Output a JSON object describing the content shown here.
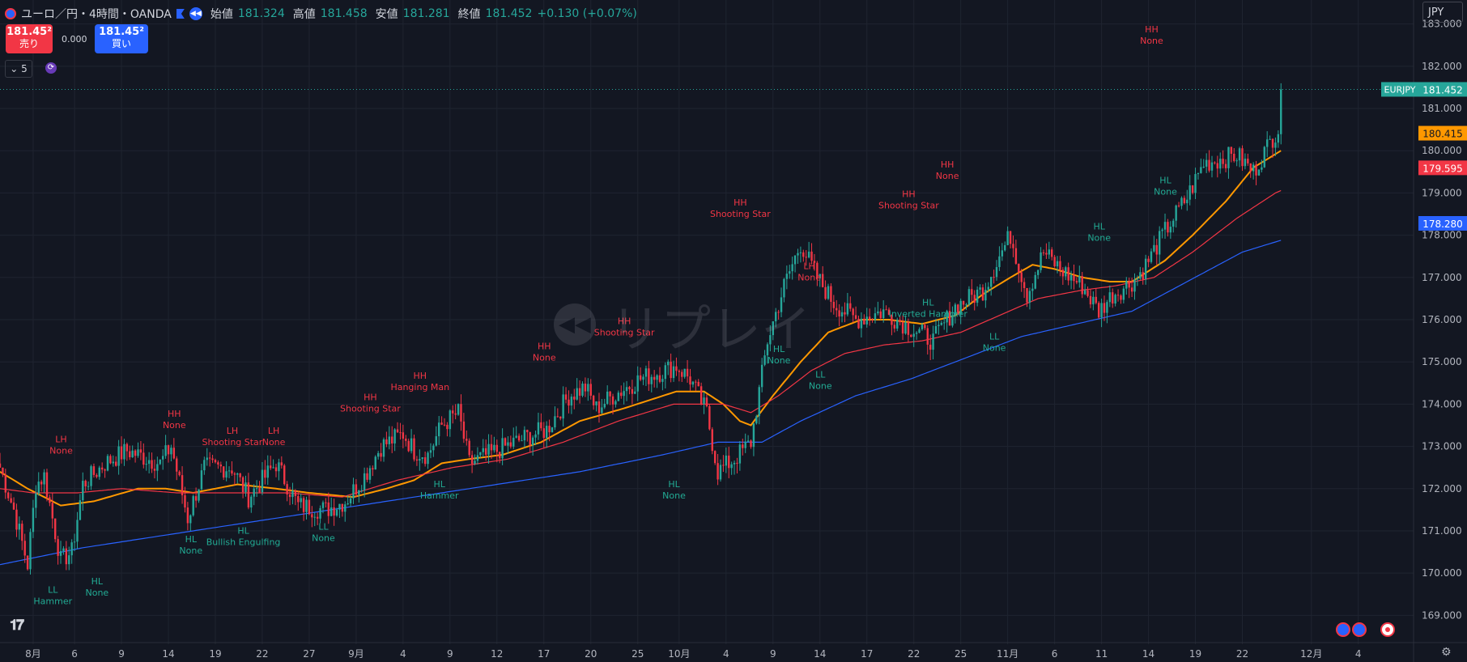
{
  "header": {
    "symbol": "ユーロ／円・4時間・OANDA",
    "open_label": "始値",
    "open": "181.324",
    "high_label": "高値",
    "high": "181.458",
    "low_label": "安値",
    "low": "181.281",
    "close_label": "終値",
    "close": "181.452",
    "change": "+0.130 (+0.07%)"
  },
  "trade": {
    "sell_price": "181.45²",
    "sell_label": "売り",
    "spread": "0.000",
    "buy_price": "181.45²",
    "buy_label": "買い",
    "lots": "5"
  },
  "currency_select": "JPY",
  "watermark": "リプレイ",
  "colors": {
    "background": "#131722",
    "grid": "#1f2430",
    "text": "#b2b5be",
    "up": "#26a69a",
    "down": "#f23645",
    "ma_fast": "#ff9800",
    "ma_mid": "#f23645",
    "ma_slow": "#2962ff",
    "pattern_high": "#f23645",
    "pattern_low": "#22ab94"
  },
  "chart_data": {
    "type": "candlestick",
    "symbol": "EURJPY",
    "y_range": [
      168.7,
      183.3
    ],
    "price_ticks": [
      "183.000",
      "182.000",
      "181.000",
      "180.000",
      "179.000",
      "178.000",
      "177.000",
      "176.000",
      "175.000",
      "174.000",
      "173.000",
      "172.000",
      "171.000",
      "170.000",
      "169.000"
    ],
    "x_tick_labels": [
      "8月",
      "6",
      "9",
      "14",
      "19",
      "22",
      "27",
      "9月",
      "4",
      "9",
      "12",
      "17",
      "20",
      "25",
      "10月",
      "4",
      "9",
      "14",
      "17",
      "22",
      "25",
      "11月",
      "6",
      "11",
      "14",
      "19",
      "22",
      "12月",
      "4"
    ],
    "x_tick_idx": [
      12,
      27,
      44,
      61,
      78,
      95,
      112,
      129,
      146,
      163,
      180,
      197,
      214,
      231,
      246,
      263,
      280,
      297,
      314,
      331,
      348,
      365,
      382,
      399,
      416,
      433,
      450,
      475,
      492
    ],
    "last_index": 464,
    "price_path": [
      [
        0,
        172.5
      ],
      [
        5,
        171.5
      ],
      [
        10,
        170.2
      ],
      [
        13,
        172.1
      ],
      [
        16,
        172.3
      ],
      [
        22,
        170.3
      ],
      [
        26,
        170.5
      ],
      [
        30,
        172.1
      ],
      [
        38,
        172.6
      ],
      [
        46,
        172.9
      ],
      [
        58,
        172.6
      ],
      [
        62,
        173.0
      ],
      [
        68,
        171.3
      ],
      [
        74,
        172.5
      ],
      [
        84,
        172.5
      ],
      [
        90,
        171.8
      ],
      [
        100,
        172.6
      ],
      [
        108,
        171.6
      ],
      [
        118,
        171.5
      ],
      [
        125,
        171.7
      ],
      [
        132,
        172.3
      ],
      [
        138,
        173.0
      ],
      [
        146,
        173.3
      ],
      [
        150,
        172.9
      ],
      [
        155,
        172.8
      ],
      [
        160,
        173.5
      ],
      [
        166,
        173.8
      ],
      [
        170,
        172.6
      ],
      [
        180,
        172.9
      ],
      [
        190,
        173.2
      ],
      [
        198,
        173.4
      ],
      [
        206,
        174.2
      ],
      [
        212,
        174.4
      ],
      [
        216,
        173.9
      ],
      [
        222,
        174.2
      ],
      [
        232,
        174.6
      ],
      [
        245,
        174.9
      ],
      [
        250,
        174.6
      ],
      [
        256,
        173.8
      ],
      [
        260,
        172.4
      ],
      [
        266,
        172.7
      ],
      [
        272,
        173.1
      ],
      [
        278,
        175.5
      ],
      [
        284,
        176.8
      ],
      [
        290,
        177.8
      ],
      [
        296,
        177.0
      ],
      [
        302,
        176.4
      ],
      [
        310,
        176.0
      ],
      [
        320,
        176.2
      ],
      [
        330,
        175.8
      ],
      [
        338,
        175.5
      ],
      [
        346,
        176.3
      ],
      [
        356,
        176.7
      ],
      [
        362,
        177.5
      ],
      [
        366,
        178.0
      ],
      [
        372,
        176.6
      ],
      [
        378,
        177.6
      ],
      [
        384,
        177.2
      ],
      [
        392,
        176.8
      ],
      [
        398,
        176.2
      ],
      [
        403,
        176.6
      ],
      [
        408,
        176.8
      ],
      [
        412,
        177.0
      ],
      [
        416,
        177.4
      ],
      [
        422,
        178.1
      ],
      [
        430,
        178.9
      ],
      [
        436,
        179.7
      ],
      [
        442,
        179.8
      ],
      [
        448,
        179.9
      ],
      [
        454,
        179.5
      ],
      [
        460,
        180.2
      ],
      [
        466,
        180.9
      ],
      [
        470,
        181.9
      ],
      [
        474,
        181.2
      ],
      [
        478,
        180.5
      ],
      [
        482,
        180.9
      ],
      [
        486,
        181.3
      ],
      [
        490,
        180.7
      ],
      [
        496,
        181.0
      ],
      [
        502,
        181.452
      ]
    ],
    "last_price": "181.452",
    "moving_averages": [
      {
        "label": "180.415",
        "color": "#ff9800",
        "path": [
          [
            0,
            172.4
          ],
          [
            10,
            172.0
          ],
          [
            22,
            171.6
          ],
          [
            34,
            171.7
          ],
          [
            50,
            172.0
          ],
          [
            60,
            172.0
          ],
          [
            70,
            171.9
          ],
          [
            86,
            172.1
          ],
          [
            100,
            172.0
          ],
          [
            112,
            171.9
          ],
          [
            128,
            171.8
          ],
          [
            140,
            172.0
          ],
          [
            150,
            172.2
          ],
          [
            160,
            172.6
          ],
          [
            170,
            172.7
          ],
          [
            182,
            172.8
          ],
          [
            196,
            173.1
          ],
          [
            210,
            173.6
          ],
          [
            226,
            173.9
          ],
          [
            245,
            174.3
          ],
          [
            255,
            174.3
          ],
          [
            262,
            174.0
          ],
          [
            268,
            173.6
          ],
          [
            272,
            173.5
          ],
          [
            280,
            174.2
          ],
          [
            290,
            175.0
          ],
          [
            300,
            175.7
          ],
          [
            312,
            176.0
          ],
          [
            322,
            176.0
          ],
          [
            334,
            175.9
          ],
          [
            346,
            176.1
          ],
          [
            356,
            176.6
          ],
          [
            366,
            177.0
          ],
          [
            374,
            177.3
          ],
          [
            382,
            177.2
          ],
          [
            392,
            177.0
          ],
          [
            402,
            176.9
          ],
          [
            410,
            176.9
          ],
          [
            422,
            177.4
          ],
          [
            432,
            178.0
          ],
          [
            444,
            178.8
          ],
          [
            454,
            179.6
          ],
          [
            464,
            180.0
          ],
          [
            472,
            180.2
          ],
          [
            484,
            180.3
          ],
          [
            494,
            180.4
          ]
        ]
      },
      {
        "label": "179.595",
        "color": "#f23645",
        "path": [
          [
            0,
            172.0
          ],
          [
            12,
            171.9
          ],
          [
            28,
            171.9
          ],
          [
            44,
            172.0
          ],
          [
            64,
            171.9
          ],
          [
            84,
            171.9
          ],
          [
            104,
            171.9
          ],
          [
            124,
            171.8
          ],
          [
            144,
            172.2
          ],
          [
            164,
            172.5
          ],
          [
            184,
            172.7
          ],
          [
            204,
            173.1
          ],
          [
            224,
            173.6
          ],
          [
            244,
            174.0
          ],
          [
            262,
            174.0
          ],
          [
            272,
            173.8
          ],
          [
            282,
            174.2
          ],
          [
            294,
            174.8
          ],
          [
            306,
            175.2
          ],
          [
            320,
            175.4
          ],
          [
            334,
            175.5
          ],
          [
            348,
            175.7
          ],
          [
            362,
            176.1
          ],
          [
            376,
            176.5
          ],
          [
            392,
            176.7
          ],
          [
            404,
            176.8
          ],
          [
            418,
            177.0
          ],
          [
            432,
            177.6
          ],
          [
            448,
            178.4
          ],
          [
            462,
            179.0
          ],
          [
            476,
            179.4
          ],
          [
            494,
            179.6
          ]
        ]
      },
      {
        "label": "178.280",
        "color": "#2962ff",
        "path": [
          [
            0,
            170.2
          ],
          [
            30,
            170.6
          ],
          [
            60,
            170.9
          ],
          [
            90,
            171.2
          ],
          [
            120,
            171.5
          ],
          [
            150,
            171.8
          ],
          [
            180,
            172.1
          ],
          [
            210,
            172.4
          ],
          [
            240,
            172.8
          ],
          [
            260,
            173.1
          ],
          [
            276,
            173.1
          ],
          [
            290,
            173.6
          ],
          [
            310,
            174.2
          ],
          [
            330,
            174.6
          ],
          [
            350,
            175.1
          ],
          [
            370,
            175.6
          ],
          [
            390,
            175.9
          ],
          [
            410,
            176.2
          ],
          [
            430,
            176.9
          ],
          [
            450,
            177.6
          ],
          [
            470,
            178.0
          ],
          [
            494,
            178.3
          ]
        ]
      }
    ],
    "annotations": [
      {
        "i": 11,
        "p": 172.6,
        "pos": "above",
        "line1": "LH",
        "line2": "None"
      },
      {
        "i": 8,
        "p": 169.8,
        "pos": "below",
        "line1": "LL",
        "line2": "Hammer"
      },
      {
        "i": 24,
        "p": 170.0,
        "pos": "below",
        "line1": "HL",
        "line2": "None"
      },
      {
        "i": 52,
        "p": 173.2,
        "pos": "above",
        "line1": "HH",
        "line2": "None"
      },
      {
        "i": 58,
        "p": 171.0,
        "pos": "below",
        "line1": "HL",
        "line2": "None"
      },
      {
        "i": 73,
        "p": 172.8,
        "pos": "above",
        "line1": "LH",
        "line2": "Shooting Star"
      },
      {
        "i": 77,
        "p": 171.2,
        "pos": "below",
        "line1": "HL",
        "line2": "Bullish Engulfing"
      },
      {
        "i": 88,
        "p": 172.8,
        "pos": "above",
        "line1": "LH",
        "line2": "None"
      },
      {
        "i": 106,
        "p": 171.3,
        "pos": "below",
        "line1": "LL",
        "line2": "None"
      },
      {
        "i": 123,
        "p": 173.6,
        "pos": "above",
        "line1": "HH",
        "line2": "Shooting Star"
      },
      {
        "i": 141,
        "p": 174.1,
        "pos": "above",
        "line1": "HH",
        "line2": "Hanging Man"
      },
      {
        "i": 148,
        "p": 172.3,
        "pos": "below",
        "line1": "HL",
        "line2": "Hammer"
      },
      {
        "i": 186,
        "p": 174.8,
        "pos": "above",
        "line1": "HH",
        "line2": "None"
      },
      {
        "i": 215,
        "p": 175.4,
        "pos": "above",
        "line1": "HH",
        "line2": "Shooting Star"
      },
      {
        "i": 233,
        "p": 172.3,
        "pos": "below",
        "line1": "HL",
        "line2": "None"
      },
      {
        "i": 257,
        "p": 178.2,
        "pos": "above",
        "line1": "HH",
        "line2": "Shooting Star"
      },
      {
        "i": 271,
        "p": 175.5,
        "pos": "below",
        "line1": "HL",
        "line2": "None"
      },
      {
        "i": 282,
        "p": 176.7,
        "pos": "above",
        "line1": "LH",
        "line2": "None"
      },
      {
        "i": 286,
        "p": 174.9,
        "pos": "below",
        "line1": "LL",
        "line2": "None"
      },
      {
        "i": 318,
        "p": 178.4,
        "pos": "above",
        "line1": "HH",
        "line2": "Shooting Star"
      },
      {
        "i": 325,
        "p": 176.6,
        "pos": "below",
        "line1": "HL",
        "line2": "Inverted Hammer"
      },
      {
        "i": 332,
        "p": 179.1,
        "pos": "above",
        "line1": "HH",
        "line2": "None"
      },
      {
        "i": 349,
        "p": 175.8,
        "pos": "below",
        "line1": "LL",
        "line2": "None"
      },
      {
        "i": 387,
        "p": 178.4,
        "pos": "below",
        "line1": "HL",
        "line2": "None"
      },
      {
        "i": 406,
        "p": 182.3,
        "pos": "above",
        "line1": "HH",
        "line2": "None"
      },
      {
        "i": 411,
        "p": 179.5,
        "pos": "below",
        "line1": "HL",
        "line2": "None"
      }
    ]
  }
}
